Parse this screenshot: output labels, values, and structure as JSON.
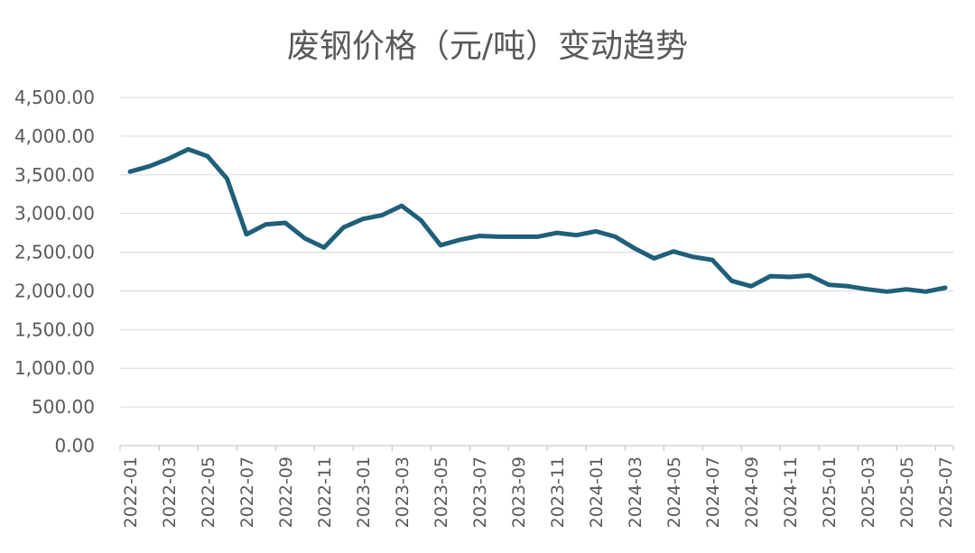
{
  "chart_data": {
    "type": "line",
    "title": "废钢价格（元/吨）变动趋势",
    "xlabel": "",
    "ylabel": "",
    "ylim": [
      0,
      4500
    ],
    "yticks": [
      "0.00",
      "500.00",
      "1,000.00",
      "1,500.00",
      "2,000.00",
      "2,500.00",
      "3,000.00",
      "3,500.00",
      "4,000.00",
      "4,500.00"
    ],
    "ytick_values": [
      0,
      500,
      1000,
      1500,
      2000,
      2500,
      3000,
      3500,
      4000,
      4500
    ],
    "grid": true,
    "legend": "none",
    "color": "#1f5f7a",
    "x": [
      "2022-01",
      "2022-02",
      "2022-03",
      "2022-04",
      "2022-05",
      "2022-06",
      "2022-07",
      "2022-08",
      "2022-09",
      "2022-10",
      "2022-11",
      "2022-12",
      "2023-01",
      "2023-02",
      "2023-03",
      "2023-04",
      "2023-05",
      "2023-06",
      "2023-07",
      "2023-08",
      "2023-09",
      "2023-10",
      "2023-11",
      "2023-12",
      "2024-01",
      "2024-02",
      "2024-03",
      "2024-04",
      "2024-05",
      "2024-06",
      "2024-07",
      "2024-08",
      "2024-09",
      "2024-10",
      "2024-11",
      "2024-12",
      "2025-01",
      "2025-02",
      "2025-03",
      "2025-04",
      "2025-05",
      "2025-06",
      "2025-07"
    ],
    "xtick_labels": [
      "2022-01",
      "2022-03",
      "2022-05",
      "2022-07",
      "2022-09",
      "2022-11",
      "2023-01",
      "2023-03",
      "2023-05",
      "2023-07",
      "2023-09",
      "2023-11",
      "2024-01",
      "2024-03",
      "2024-05",
      "2024-07",
      "2024-09",
      "2024-11",
      "2025-01",
      "2025-03",
      "2025-05",
      "2025-07"
    ],
    "series": [
      {
        "values": [
          3540,
          3610,
          3710,
          3830,
          3740,
          3450,
          2730,
          2860,
          2880,
          2680,
          2560,
          2820,
          2930,
          2980,
          3100,
          2910,
          2590,
          2660,
          2710,
          2700,
          2700,
          2700,
          2750,
          2720,
          2770,
          2700,
          2550,
          2420,
          2510,
          2440,
          2400,
          2130,
          2060,
          2190,
          2180,
          2200,
          2080,
          2060,
          2020,
          1990,
          2020,
          1990,
          2040
        ]
      }
    ]
  }
}
